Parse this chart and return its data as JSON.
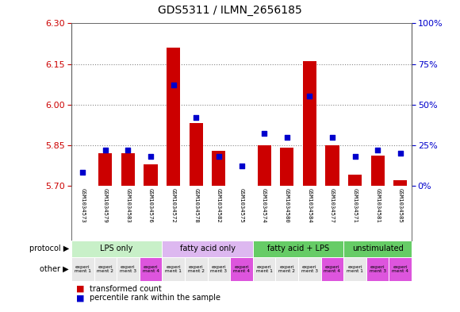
{
  "title": "GDS5311 / ILMN_2656185",
  "samples": [
    "GSM1034573",
    "GSM1034579",
    "GSM1034583",
    "GSM1034576",
    "GSM1034572",
    "GSM1034578",
    "GSM1034582",
    "GSM1034575",
    "GSM1034574",
    "GSM1034580",
    "GSM1034584",
    "GSM1034577",
    "GSM1034571",
    "GSM1034581",
    "GSM1034585"
  ],
  "red_values": [
    5.7,
    5.82,
    5.82,
    5.78,
    6.21,
    5.93,
    5.83,
    5.7,
    5.85,
    5.84,
    6.16,
    5.85,
    5.74,
    5.81,
    5.72
  ],
  "blue_values": [
    8,
    22,
    22,
    18,
    62,
    42,
    18,
    12,
    32,
    30,
    55,
    30,
    18,
    22,
    20
  ],
  "ylim_left": [
    5.7,
    6.3
  ],
  "ylim_right": [
    0,
    100
  ],
  "yticks_left": [
    5.7,
    5.85,
    6.0,
    6.15,
    6.3
  ],
  "yticks_right": [
    0,
    25,
    50,
    75,
    100
  ],
  "hlines": [
    5.85,
    6.0,
    6.15
  ],
  "proto_labels": [
    "LPS only",
    "fatty acid only",
    "fatty acid + LPS",
    "unstimulated"
  ],
  "proto_starts": [
    0,
    4,
    8,
    12
  ],
  "proto_counts": [
    4,
    4,
    4,
    3
  ],
  "proto_colors": [
    "#c8f0c8",
    "#ddb8f0",
    "#66cc66",
    "#66cc66"
  ],
  "other_cell_colors": [
    "#e8e8e8",
    "#e8e8e8",
    "#e8e8e8",
    "#dd55dd",
    "#e8e8e8",
    "#e8e8e8",
    "#e8e8e8",
    "#dd55dd",
    "#e8e8e8",
    "#e8e8e8",
    "#e8e8e8",
    "#dd55dd",
    "#e8e8e8",
    "#dd55dd",
    "#dd55dd"
  ],
  "other_cell_texts": [
    "experi\nment 1",
    "experi\nment 2",
    "experi\nment 3",
    "experi\nment 4",
    "experi\nment 1",
    "experi\nment 2",
    "experi\nment 3",
    "experi\nment 4",
    "experi\nment 1",
    "experi\nment 2",
    "experi\nment 3",
    "experi\nment 4",
    "experi\nment 1",
    "experi\nment 3",
    "experi\nment 4"
  ],
  "bar_color": "#cc0000",
  "dot_color": "#0000cc",
  "bar_width": 0.6,
  "bar_baseline": 5.7,
  "hline_color": "#888888",
  "bg_color": "#d0d0d0",
  "sample_bg": "#d8d8d8",
  "plot_bg": "#ffffff",
  "left_tick_color": "#cc0000",
  "right_tick_color": "#0000cc",
  "title_fontsize": 10,
  "tick_fontsize": 8,
  "label_fontsize": 7,
  "bar_label_fontsize": 5
}
